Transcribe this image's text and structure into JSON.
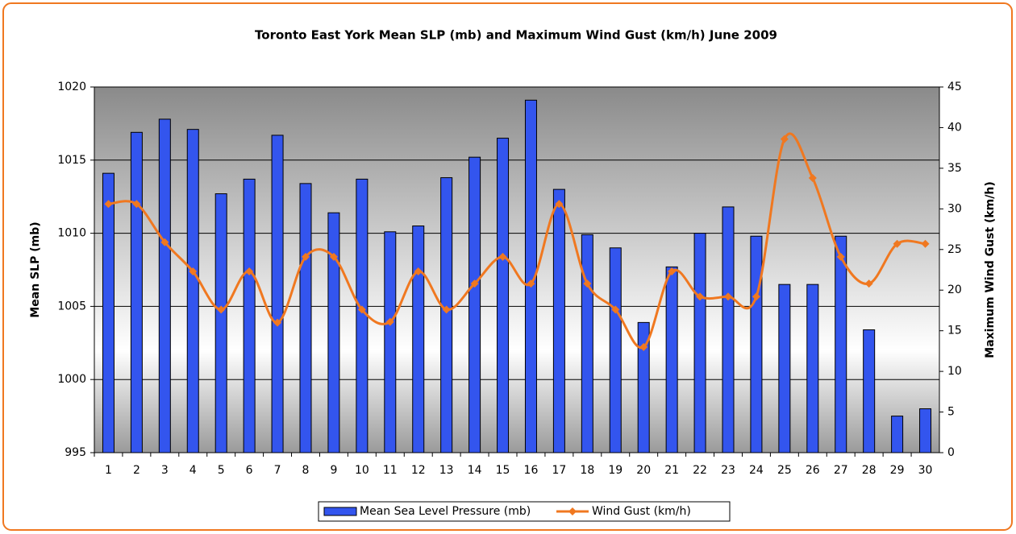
{
  "chart_data": {
    "type": "bar-line",
    "title": "Toronto East York Mean SLP (mb) and Maximum Wind Gust (km/h) June 2009",
    "y_label": "Mean SLP (mb)",
    "y2_label": "Maximum Wind Gust (km/h)",
    "categories": [
      1,
      2,
      3,
      4,
      5,
      6,
      7,
      8,
      9,
      10,
      11,
      12,
      13,
      14,
      15,
      16,
      17,
      18,
      19,
      20,
      21,
      22,
      23,
      24,
      25,
      26,
      27,
      28,
      29,
      30
    ],
    "series": [
      {
        "name": "Mean Sea Level Pressure (mb)",
        "type": "bar",
        "color": "#3355ee",
        "values": [
          1014.1,
          1016.9,
          1017.8,
          1017.1,
          1012.7,
          1013.7,
          1016.7,
          1013.4,
          1011.4,
          1013.7,
          1010.1,
          1010.5,
          1013.8,
          1015.2,
          1016.5,
          1019.1,
          1013.0,
          1009.9,
          1009.0,
          1003.9,
          1007.7,
          1010.0,
          1011.8,
          1009.8,
          1006.5,
          1006.5,
          1009.8,
          1003.4,
          997.5,
          998.0
        ]
      },
      {
        "name": "Wind Gust (km/h)",
        "type": "line",
        "axis": "y2",
        "color": "#f07820",
        "values": [
          30.6,
          30.6,
          25.9,
          22.3,
          17.6,
          22.3,
          16.0,
          24.1,
          24.1,
          17.6,
          16.1,
          22.3,
          17.6,
          20.8,
          24.1,
          20.8,
          30.6,
          20.8,
          17.6,
          13.0,
          22.3,
          19.2,
          19.2,
          19.2,
          38.6,
          33.8,
          24.1,
          20.8,
          25.7,
          25.7
        ]
      }
    ],
    "ylim": [
      995,
      1020
    ],
    "yticks": [
      995,
      1000,
      1005,
      1010,
      1015,
      1020
    ],
    "y2lim": [
      0,
      45
    ],
    "y2ticks": [
      0,
      5,
      10,
      15,
      20,
      25,
      30,
      35,
      40,
      45
    ],
    "grid": true,
    "legend": "bottom"
  }
}
